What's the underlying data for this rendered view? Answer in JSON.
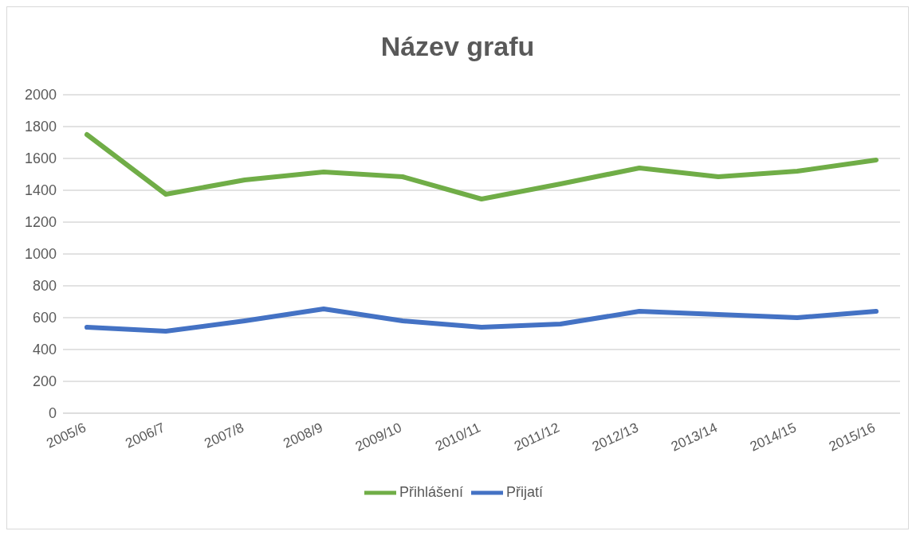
{
  "chart_data": {
    "type": "line",
    "title": "Název grafu",
    "categories": [
      "2005/6",
      "2006/7",
      "2007/8",
      "2008/9",
      "2009/10",
      "2010/11",
      "2011/12",
      "2012/13",
      "2013/14",
      "2014/15",
      "2015/16"
    ],
    "series": [
      {
        "name": "Přihlášení",
        "color": "#70ad47",
        "values": [
          1750,
          1375,
          1465,
          1515,
          1485,
          1345,
          1440,
          1540,
          1485,
          1520,
          1590
        ]
      },
      {
        "name": "Přijatí",
        "color": "#4472c4",
        "values": [
          540,
          515,
          580,
          655,
          580,
          540,
          560,
          640,
          620,
          600,
          640
        ]
      }
    ],
    "ylim": [
      0,
      2000
    ],
    "yticks": [
      0,
      200,
      400,
      600,
      800,
      1000,
      1200,
      1400,
      1600,
      1800,
      2000
    ],
    "grid": "y",
    "legend": "bottom",
    "marker": "none",
    "line_style": "solid"
  }
}
